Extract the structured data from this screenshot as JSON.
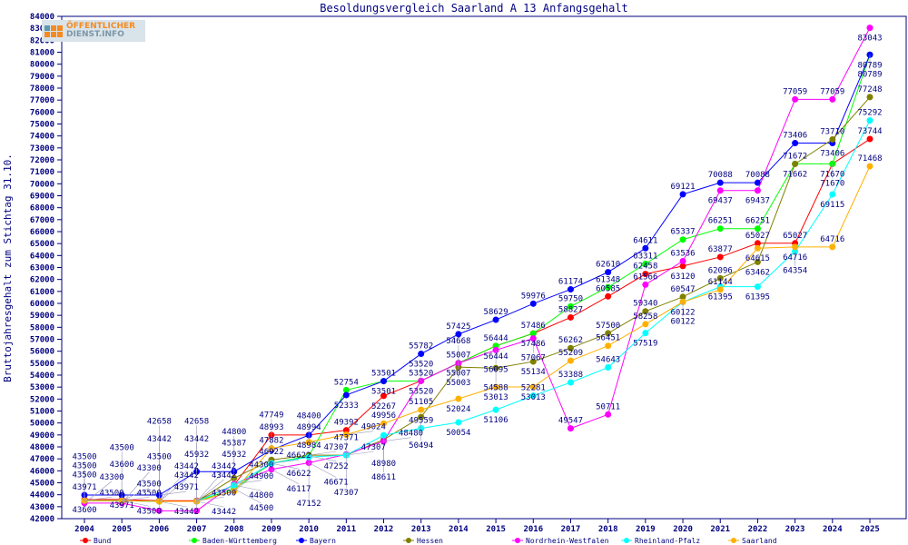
{
  "logo": {
    "line1": "ÖFFENTLICHER",
    "line2": "DIENST.INFO"
  },
  "chart_data": {
    "type": "line",
    "title": "Besoldungsvergleich Saarland A 13 Anfangsgehalt",
    "xlabel": "",
    "ylabel": "Bruttojahresgehalt zum Stichtag 31.10.",
    "ylim": [
      42000,
      84000
    ],
    "ytick_step": 1000,
    "grid": false,
    "legend_position": "bottom",
    "x": [
      2004,
      2005,
      2006,
      2007,
      2008,
      2009,
      2010,
      2011,
      2012,
      2013,
      2014,
      2015,
      2016,
      2017,
      2018,
      2019,
      2020,
      2021,
      2022,
      2023,
      2024,
      2025
    ],
    "series": [
      {
        "name": "Bund",
        "color": "#ff0000",
        "values": [
          43600,
          43600,
          43500,
          43500,
          44800,
          48993,
          48994,
          49392,
          52267,
          53520,
          55007,
          56444,
          57486,
          58827,
          60585,
          62458,
          63120,
          63877,
          65027,
          65027,
          71670,
          73744
        ]
      },
      {
        "name": "Baden-Württemberg",
        "color": "#00ff00",
        "values": [
          43500,
          43500,
          43442,
          43442,
          44500,
          46622,
          47252,
          52754,
          53501,
          53520,
          55007,
          56444,
          57486,
          59750,
          61348,
          63311,
          65337,
          66251,
          66251,
          71672,
          71670,
          80789
        ]
      },
      {
        "name": "Bayern",
        "color": "#0000ff",
        "values": [
          43971,
          43971,
          43971,
          45932,
          45932,
          47749,
          48984,
          52333,
          53501,
          55782,
          57425,
          58629,
          59976,
          61174,
          62610,
          64611,
          69121,
          70088,
          70088,
          73406,
          73406,
          80789
        ]
      },
      {
        "name": "Hessen",
        "color": "#808000",
        "values": [
          43500,
          43500,
          43442,
          43442,
          45387,
          46922,
          47307,
          47307,
          48611,
          50494,
          54668,
          54588,
          55134,
          56262,
          57500,
          59340,
          60547,
          62096,
          63462,
          71662,
          73710,
          77248
        ]
      },
      {
        "name": "Nordrhein-Westfalen",
        "color": "#ff00ff",
        "values": [
          43300,
          43300,
          42658,
          42658,
          44900,
          46117,
          46671,
          47371,
          48480,
          53520,
          55003,
          56095,
          57067,
          49547,
          50711,
          61566,
          63536,
          69437,
          69437,
          77059,
          77059,
          83043
        ]
      },
      {
        "name": "Rheinland-Pfalz",
        "color": "#00ffff",
        "values": [
          43500,
          43500,
          43442,
          43442,
          44800,
          46622,
          47152,
          47307,
          48980,
          49559,
          50054,
          51106,
          52281,
          53388,
          54643,
          57519,
          60122,
          61395,
          61395,
          64354,
          69115,
          75292
        ]
      },
      {
        "name": "Saarland",
        "color": "#ffb000",
        "values": [
          43500,
          43500,
          43442,
          43442,
          44300,
          47882,
          48400,
          49024,
          49956,
          51105,
          52024,
          53013,
          53013,
          55209,
          56451,
          58258,
          60122,
          61144,
          64615,
          64716,
          64716,
          71468
        ]
      }
    ]
  }
}
